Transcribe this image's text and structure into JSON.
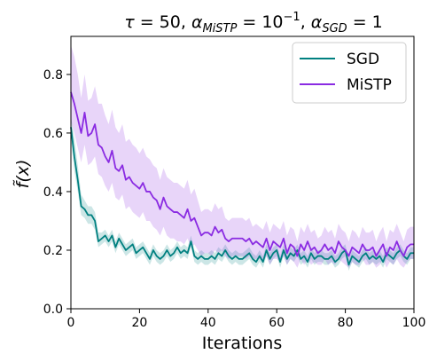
{
  "chart_data": {
    "type": "line",
    "title_parts": {
      "tau": "τ",
      "tau_val": " = 50, ",
      "alpha1": "α",
      "alpha1_sub": "MiSTP",
      "alpha1_eq": " = 10",
      "alpha1_exp": "−1",
      "comma": ", ",
      "alpha2": "α",
      "alpha2_sub": "SGD",
      "alpha2_eq": " = 1"
    },
    "xlabel": "Iterations",
    "ylabel": "f̃(x)",
    "xlim": [
      0,
      100
    ],
    "ylim": [
      0,
      0.93
    ],
    "xticks": [
      0,
      20,
      40,
      60,
      80,
      100
    ],
    "xtick_labels": [
      "0",
      "20",
      "40",
      "60",
      "80",
      "100"
    ],
    "yticks": [
      0.0,
      0.2,
      0.4,
      0.6,
      0.8
    ],
    "ytick_labels": [
      "0.0",
      "0.2",
      "0.4",
      "0.6",
      "0.8"
    ],
    "grid": false,
    "legend_position": "top-right",
    "series": [
      {
        "name": "SGD",
        "color": "#008080",
        "x": [
          0,
          1,
          2,
          3,
          4,
          5,
          6,
          7,
          8,
          9,
          10,
          11,
          12,
          13,
          14,
          15,
          16,
          17,
          18,
          19,
          20,
          21,
          22,
          23,
          24,
          25,
          26,
          27,
          28,
          29,
          30,
          31,
          32,
          33,
          34,
          35,
          36,
          37,
          38,
          39,
          40,
          41,
          42,
          43,
          44,
          45,
          46,
          47,
          48,
          49,
          50,
          51,
          52,
          53,
          54,
          55,
          56,
          57,
          58,
          59,
          60,
          61,
          62,
          63,
          64,
          65,
          66,
          67,
          68,
          69,
          70,
          71,
          72,
          73,
          74,
          75,
          76,
          77,
          78,
          79,
          80,
          81,
          82,
          83,
          84,
          85,
          86,
          87,
          88,
          89,
          90,
          91,
          92,
          93,
          94,
          95,
          96,
          97,
          98,
          99,
          100
        ],
        "values": [
          0.62,
          0.52,
          0.44,
          0.35,
          0.34,
          0.32,
          0.32,
          0.3,
          0.23,
          0.24,
          0.25,
          0.23,
          0.25,
          0.21,
          0.24,
          0.22,
          0.2,
          0.21,
          0.22,
          0.19,
          0.2,
          0.21,
          0.19,
          0.17,
          0.2,
          0.18,
          0.17,
          0.18,
          0.2,
          0.18,
          0.19,
          0.21,
          0.19,
          0.2,
          0.19,
          0.23,
          0.18,
          0.17,
          0.18,
          0.17,
          0.17,
          0.18,
          0.17,
          0.19,
          0.18,
          0.2,
          0.18,
          0.17,
          0.18,
          0.17,
          0.17,
          0.18,
          0.19,
          0.17,
          0.16,
          0.18,
          0.16,
          0.2,
          0.17,
          0.19,
          0.2,
          0.16,
          0.2,
          0.17,
          0.19,
          0.18,
          0.2,
          0.17,
          0.18,
          0.16,
          0.19,
          0.17,
          0.18,
          0.18,
          0.17,
          0.17,
          0.18,
          0.16,
          0.17,
          0.19,
          0.2,
          0.15,
          0.18,
          0.17,
          0.16,
          0.18,
          0.19,
          0.17,
          0.18,
          0.17,
          0.18,
          0.16,
          0.19,
          0.18,
          0.17,
          0.19,
          0.2,
          0.18,
          0.17,
          0.19,
          0.19
        ],
        "lower": [
          0.58,
          0.47,
          0.4,
          0.32,
          0.31,
          0.29,
          0.29,
          0.27,
          0.21,
          0.22,
          0.23,
          0.21,
          0.23,
          0.19,
          0.22,
          0.2,
          0.18,
          0.19,
          0.2,
          0.17,
          0.18,
          0.19,
          0.17,
          0.15,
          0.18,
          0.16,
          0.15,
          0.16,
          0.18,
          0.16,
          0.17,
          0.19,
          0.17,
          0.18,
          0.17,
          0.21,
          0.16,
          0.15,
          0.16,
          0.15,
          0.15,
          0.16,
          0.15,
          0.17,
          0.16,
          0.18,
          0.16,
          0.15,
          0.16,
          0.15,
          0.15,
          0.16,
          0.17,
          0.15,
          0.14,
          0.16,
          0.14,
          0.18,
          0.15,
          0.17,
          0.18,
          0.14,
          0.18,
          0.15,
          0.17,
          0.16,
          0.18,
          0.15,
          0.16,
          0.14,
          0.17,
          0.15,
          0.16,
          0.16,
          0.15,
          0.15,
          0.16,
          0.14,
          0.15,
          0.17,
          0.18,
          0.13,
          0.16,
          0.15,
          0.14,
          0.16,
          0.17,
          0.15,
          0.16,
          0.15,
          0.16,
          0.14,
          0.17,
          0.16,
          0.15,
          0.17,
          0.18,
          0.16,
          0.15,
          0.17,
          0.17
        ],
        "upper": [
          0.66,
          0.58,
          0.49,
          0.39,
          0.37,
          0.35,
          0.35,
          0.33,
          0.26,
          0.26,
          0.27,
          0.25,
          0.27,
          0.23,
          0.26,
          0.24,
          0.22,
          0.23,
          0.24,
          0.21,
          0.22,
          0.23,
          0.21,
          0.19,
          0.22,
          0.2,
          0.19,
          0.2,
          0.22,
          0.2,
          0.21,
          0.23,
          0.21,
          0.22,
          0.21,
          0.25,
          0.2,
          0.19,
          0.2,
          0.19,
          0.19,
          0.2,
          0.19,
          0.21,
          0.2,
          0.22,
          0.2,
          0.19,
          0.2,
          0.19,
          0.19,
          0.2,
          0.21,
          0.19,
          0.18,
          0.2,
          0.18,
          0.22,
          0.19,
          0.21,
          0.22,
          0.18,
          0.22,
          0.19,
          0.21,
          0.2,
          0.22,
          0.19,
          0.2,
          0.18,
          0.21,
          0.19,
          0.2,
          0.2,
          0.19,
          0.19,
          0.2,
          0.18,
          0.19,
          0.21,
          0.22,
          0.17,
          0.2,
          0.19,
          0.18,
          0.2,
          0.21,
          0.19,
          0.2,
          0.19,
          0.2,
          0.18,
          0.21,
          0.2,
          0.19,
          0.21,
          0.22,
          0.2,
          0.19,
          0.21,
          0.21
        ]
      },
      {
        "name": "MiSTP",
        "color": "#8a2be2",
        "x": [
          0,
          1,
          2,
          3,
          4,
          5,
          6,
          7,
          8,
          9,
          10,
          11,
          12,
          13,
          14,
          15,
          16,
          17,
          18,
          19,
          20,
          21,
          22,
          23,
          24,
          25,
          26,
          27,
          28,
          29,
          30,
          31,
          32,
          33,
          34,
          35,
          36,
          37,
          38,
          39,
          40,
          41,
          42,
          43,
          44,
          45,
          46,
          47,
          48,
          49,
          50,
          51,
          52,
          53,
          54,
          55,
          56,
          57,
          58,
          59,
          60,
          61,
          62,
          63,
          64,
          65,
          66,
          67,
          68,
          69,
          70,
          71,
          72,
          73,
          74,
          75,
          76,
          77,
          78,
          79,
          80,
          81,
          82,
          83,
          84,
          85,
          86,
          87,
          88,
          89,
          90,
          91,
          92,
          93,
          94,
          95,
          96,
          97,
          98,
          99,
          100
        ],
        "values": [
          0.74,
          0.7,
          0.65,
          0.6,
          0.67,
          0.59,
          0.6,
          0.63,
          0.56,
          0.55,
          0.52,
          0.5,
          0.54,
          0.48,
          0.47,
          0.49,
          0.44,
          0.45,
          0.43,
          0.42,
          0.41,
          0.43,
          0.4,
          0.4,
          0.38,
          0.37,
          0.34,
          0.38,
          0.35,
          0.34,
          0.33,
          0.33,
          0.32,
          0.31,
          0.34,
          0.3,
          0.31,
          0.28,
          0.25,
          0.26,
          0.26,
          0.25,
          0.28,
          0.26,
          0.27,
          0.24,
          0.23,
          0.24,
          0.24,
          0.24,
          0.24,
          0.23,
          0.24,
          0.22,
          0.23,
          0.22,
          0.21,
          0.24,
          0.2,
          0.23,
          0.22,
          0.21,
          0.24,
          0.19,
          0.22,
          0.21,
          0.18,
          0.22,
          0.2,
          0.23,
          0.2,
          0.21,
          0.19,
          0.2,
          0.22,
          0.2,
          0.21,
          0.19,
          0.23,
          0.21,
          0.2,
          0.18,
          0.21,
          0.2,
          0.19,
          0.22,
          0.2,
          0.2,
          0.21,
          0.18,
          0.2,
          0.22,
          0.18,
          0.21,
          0.2,
          0.23,
          0.2,
          0.18,
          0.21,
          0.22,
          0.22
        ],
        "lower": [
          0.64,
          0.6,
          0.55,
          0.5,
          0.56,
          0.49,
          0.5,
          0.52,
          0.46,
          0.45,
          0.42,
          0.4,
          0.43,
          0.38,
          0.37,
          0.39,
          0.34,
          0.35,
          0.33,
          0.32,
          0.31,
          0.33,
          0.3,
          0.3,
          0.28,
          0.27,
          0.25,
          0.28,
          0.25,
          0.24,
          0.24,
          0.23,
          0.23,
          0.22,
          0.24,
          0.21,
          0.22,
          0.2,
          0.18,
          0.19,
          0.19,
          0.18,
          0.2,
          0.19,
          0.2,
          0.18,
          0.17,
          0.18,
          0.18,
          0.18,
          0.18,
          0.17,
          0.18,
          0.17,
          0.17,
          0.17,
          0.16,
          0.18,
          0.15,
          0.17,
          0.17,
          0.16,
          0.18,
          0.15,
          0.17,
          0.16,
          0.14,
          0.17,
          0.15,
          0.17,
          0.15,
          0.16,
          0.15,
          0.15,
          0.17,
          0.15,
          0.16,
          0.15,
          0.17,
          0.16,
          0.15,
          0.14,
          0.16,
          0.15,
          0.15,
          0.17,
          0.15,
          0.15,
          0.16,
          0.14,
          0.15,
          0.17,
          0.14,
          0.16,
          0.15,
          0.17,
          0.15,
          0.14,
          0.16,
          0.17,
          0.17
        ],
        "upper": [
          0.9,
          0.86,
          0.8,
          0.72,
          0.8,
          0.71,
          0.72,
          0.76,
          0.7,
          0.7,
          0.66,
          0.63,
          0.68,
          0.62,
          0.6,
          0.63,
          0.57,
          0.58,
          0.56,
          0.55,
          0.53,
          0.55,
          0.52,
          0.51,
          0.49,
          0.48,
          0.44,
          0.48,
          0.45,
          0.44,
          0.43,
          0.43,
          0.42,
          0.41,
          0.44,
          0.39,
          0.41,
          0.37,
          0.33,
          0.34,
          0.34,
          0.33,
          0.36,
          0.34,
          0.35,
          0.31,
          0.3,
          0.31,
          0.31,
          0.31,
          0.31,
          0.3,
          0.31,
          0.28,
          0.29,
          0.28,
          0.27,
          0.3,
          0.26,
          0.29,
          0.28,
          0.27,
          0.3,
          0.25,
          0.28,
          0.27,
          0.23,
          0.28,
          0.26,
          0.29,
          0.26,
          0.27,
          0.24,
          0.25,
          0.28,
          0.26,
          0.27,
          0.24,
          0.29,
          0.27,
          0.26,
          0.23,
          0.27,
          0.26,
          0.24,
          0.28,
          0.26,
          0.26,
          0.27,
          0.23,
          0.26,
          0.28,
          0.23,
          0.27,
          0.26,
          0.29,
          0.26,
          0.23,
          0.27,
          0.28,
          0.28
        ]
      }
    ]
  }
}
